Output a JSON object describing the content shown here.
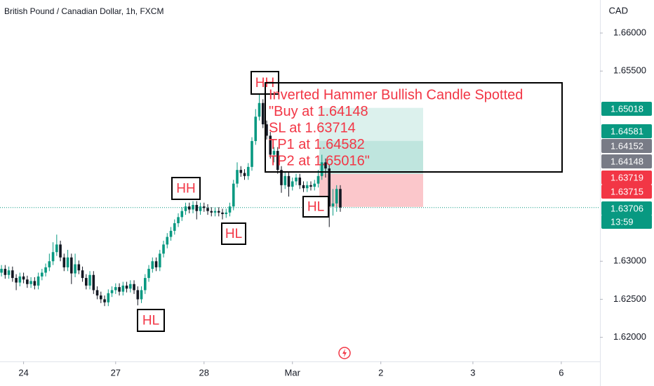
{
  "chart_data": {
    "type": "candlestick",
    "title": "British Pound / Canadian Dollar, 1h, FXCM",
    "currency": "CAD",
    "up_color": "#089981",
    "down_color": "#131722",
    "ylim": [
      1.61683,
      1.66434
    ],
    "yticks": [
      {
        "value": 1.62,
        "label": "1.62000"
      },
      {
        "value": 1.625,
        "label": "1.62500"
      },
      {
        "value": 1.63,
        "label": "1.63000"
      },
      {
        "value": 1.655,
        "label": "1.65500"
      },
      {
        "value": 1.66,
        "label": "1.66000"
      }
    ],
    "xlim": [
      -0.4,
      162.5
    ],
    "xticks": [
      {
        "value": 6,
        "label": "24"
      },
      {
        "value": 31,
        "label": "27"
      },
      {
        "value": 55,
        "label": "28"
      },
      {
        "value": 79,
        "label": "Mar"
      },
      {
        "value": 103,
        "label": "2"
      },
      {
        "value": 128,
        "label": "3"
      },
      {
        "value": 152,
        "label": "6"
      }
    ],
    "grid": false,
    "open": [
      1.6285,
      1.629,
      1.6282,
      1.6288,
      1.6278,
      1.6272,
      1.628,
      1.6276,
      1.627,
      1.6274,
      1.6268,
      1.628,
      1.6285,
      1.6292,
      1.63,
      1.6312,
      1.6322,
      1.6305,
      1.6292,
      1.6305,
      1.6284,
      1.6296,
      1.6288,
      1.6278,
      1.6268,
      1.6282,
      1.6262,
      1.6255,
      1.625,
      1.6246,
      1.6258,
      1.6262,
      1.6266,
      1.626,
      1.6268,
      1.6264,
      1.627,
      1.6262,
      1.625,
      1.6262,
      1.6278,
      1.629,
      1.63,
      1.6292,
      1.631,
      1.6322,
      1.6332,
      1.634,
      1.635,
      1.6358,
      1.6366,
      1.6372,
      1.6368,
      1.6374,
      1.6366,
      1.6372,
      1.637,
      1.6366,
      1.6364,
      1.6366,
      1.6364,
      1.6362,
      1.6364,
      1.6372,
      1.6402,
      1.642,
      1.6416,
      1.6412,
      1.6424,
      1.6458,
      1.649,
      1.6508,
      1.648,
      1.6465,
      1.644,
      1.6445,
      1.642,
      1.64,
      1.6412,
      1.6398,
      1.6405,
      1.641,
      1.64,
      1.6396,
      1.64,
      1.6398,
      1.6402,
      1.6412,
      1.643,
      1.6422,
      1.6372,
      1.6376,
      1.6395
    ],
    "high": [
      1.6295,
      1.6295,
      1.6293,
      1.6293,
      1.6283,
      1.6285,
      1.6285,
      1.6281,
      1.6279,
      1.6279,
      1.6285,
      1.629,
      1.6297,
      1.631,
      1.6325,
      1.6335,
      1.6327,
      1.631,
      1.6315,
      1.631,
      1.631,
      1.6301,
      1.6293,
      1.6283,
      1.6287,
      1.6287,
      1.6267,
      1.626,
      1.6255,
      1.6263,
      1.6267,
      1.6271,
      1.6271,
      1.6273,
      1.6273,
      1.6275,
      1.6275,
      1.6267,
      1.6267,
      1.6283,
      1.6295,
      1.6305,
      1.6305,
      1.6315,
      1.6327,
      1.6337,
      1.6345,
      1.6355,
      1.6363,
      1.6371,
      1.6377,
      1.6377,
      1.6379,
      1.6379,
      1.6377,
      1.6377,
      1.6375,
      1.6371,
      1.6371,
      1.6371,
      1.6369,
      1.6369,
      1.6377,
      1.6407,
      1.643,
      1.6425,
      1.6421,
      1.6429,
      1.6463,
      1.65,
      1.6523,
      1.6513,
      1.6485,
      1.647,
      1.645,
      1.645,
      1.6425,
      1.6417,
      1.6417,
      1.641,
      1.6415,
      1.6415,
      1.6405,
      1.6405,
      1.6405,
      1.6407,
      1.642,
      1.644,
      1.6435,
      1.6427,
      1.6395,
      1.64,
      1.64
    ],
    "low": [
      1.628,
      1.6277,
      1.6277,
      1.6273,
      1.6262,
      1.6267,
      1.6271,
      1.6265,
      1.6265,
      1.6263,
      1.6263,
      1.6275,
      1.628,
      1.6287,
      1.6295,
      1.6307,
      1.63,
      1.6287,
      1.6287,
      1.627,
      1.6279,
      1.6283,
      1.6273,
      1.6263,
      1.6263,
      1.6257,
      1.625,
      1.6245,
      1.6241,
      1.6241,
      1.6253,
      1.6257,
      1.6255,
      1.6255,
      1.6259,
      1.6259,
      1.6257,
      1.6242,
      1.6245,
      1.6257,
      1.6273,
      1.6285,
      1.6287,
      1.6287,
      1.6305,
      1.6317,
      1.6327,
      1.6335,
      1.6345,
      1.6353,
      1.6361,
      1.6363,
      1.6363,
      1.6355,
      1.6361,
      1.6365,
      1.6361,
      1.6359,
      1.6359,
      1.6359,
      1.6355,
      1.6357,
      1.6359,
      1.6367,
      1.6397,
      1.6411,
      1.6407,
      1.6407,
      1.6419,
      1.6453,
      1.6485,
      1.6475,
      1.646,
      1.6435,
      1.643,
      1.6415,
      1.639,
      1.6395,
      1.6385,
      1.6393,
      1.64,
      1.6395,
      1.6391,
      1.6391,
      1.6393,
      1.6393,
      1.6397,
      1.6407,
      1.641,
      1.6345,
      1.636,
      1.6365,
      1.6365
    ],
    "close": [
      1.629,
      1.6282,
      1.6288,
      1.6278,
      1.6272,
      1.628,
      1.6276,
      1.627,
      1.6274,
      1.6268,
      1.628,
      1.6285,
      1.6292,
      1.63,
      1.6312,
      1.6322,
      1.6305,
      1.6292,
      1.6305,
      1.6284,
      1.6296,
      1.6288,
      1.6278,
      1.6268,
      1.6282,
      1.6262,
      1.6255,
      1.625,
      1.6246,
      1.6258,
      1.6262,
      1.6266,
      1.626,
      1.6268,
      1.6264,
      1.627,
      1.6262,
      1.625,
      1.6262,
      1.6278,
      1.629,
      1.63,
      1.6292,
      1.631,
      1.6322,
      1.6332,
      1.634,
      1.635,
      1.6358,
      1.6366,
      1.6372,
      1.6368,
      1.6374,
      1.6366,
      1.6372,
      1.637,
      1.6366,
      1.6364,
      1.6366,
      1.6364,
      1.6362,
      1.6364,
      1.6372,
      1.6402,
      1.642,
      1.6416,
      1.6412,
      1.6424,
      1.6458,
      1.649,
      1.6508,
      1.648,
      1.6465,
      1.644,
      1.6445,
      1.642,
      1.64,
      1.6412,
      1.6398,
      1.6405,
      1.641,
      1.64,
      1.6396,
      1.64,
      1.6398,
      1.6402,
      1.6412,
      1.643,
      1.6422,
      1.6372,
      1.6376,
      1.6395,
      1.63706
    ],
    "position": {
      "entry": 1.64148,
      "stop": 1.63714,
      "tp1": 1.64582,
      "tp2": 1.65016
    },
    "swing_labels": [
      "HH",
      "HH",
      "HL",
      "HL",
      "HL"
    ],
    "note_lines": [
      "Inverted Hammer Bullish Candle Spotted",
      "\"Buy at 1.64148",
      "SL at 1.63714",
      "TP1 at 1.64582",
      "TP2 at 1.65016\""
    ],
    "price_labels": [
      {
        "value": 1.65018,
        "color": "#089981"
      },
      {
        "value": 1.64581,
        "color": "#089981"
      },
      {
        "value": 1.64152,
        "color": "#787b86"
      },
      {
        "value": 1.64148,
        "color": "#787b86"
      },
      {
        "value": 1.63719,
        "color": "#f23645"
      },
      {
        "value": 1.63715,
        "color": "#f23645"
      },
      {
        "value": 1.63706,
        "color": "#089981"
      }
    ],
    "countdown": "13:59"
  }
}
